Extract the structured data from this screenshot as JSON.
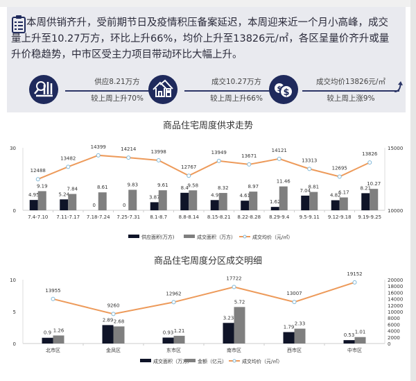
{
  "summary": {
    "icon": "clipboard-icon",
    "text": "本周供销齐升，受前期节日及疫情积压备案延迟，本周迎来近一个月小高峰，成交量上升至10.27万方，环比上升66%，均价上升至13826元/㎡，各区呈量价齐升或量升价稳趋势，中市区受主力项目带动环比大幅上升。"
  },
  "stats": [
    {
      "icon": "chart-magnifier-icon",
      "top": "供应8.21万方",
      "bottom": "较上周上升70%"
    },
    {
      "icon": "house-icon",
      "top": "成交10.27万方",
      "bottom": "较上周上升66%"
    },
    {
      "icon": "dollar-coins-icon",
      "top": "成交均价13826元/㎡",
      "bottom": "较上周上涨9%"
    }
  ],
  "colors": {
    "navy": "#0f1428",
    "gray": "#7f7f7f",
    "orange": "#ed9a5a",
    "panel": "#e9eaef"
  },
  "chart_data": [
    {
      "type": "bar",
      "title": "商品住宅周度供求走势",
      "categories": [
        "7.4-7.10",
        "7.11-7.17",
        "7.18-7.24",
        "7.25-7.31",
        "8.1-8.7",
        "8.8-8.14",
        "8.15-8.21",
        "8.22-8.28",
        "8.29-9.4",
        "9.5-9.11",
        "9.12-9.18",
        "9.19-9.25"
      ],
      "series": [
        {
          "name": "供应面积(万方)",
          "axis": "left",
          "values": [
            4.95,
            5.24,
            0,
            0,
            3.87,
            8.4,
            4.9,
            4.61,
            1.62,
            7.04,
            4.82,
            8.21
          ]
        },
        {
          "name": "成交面积（万方）",
          "axis": "left",
          "values": [
            9.19,
            7.84,
            8.61,
            9.83,
            9.61,
            9.58,
            8.32,
            8.97,
            11.46,
            8.81,
            6.17,
            10.27
          ]
        },
        {
          "name": "成交均价（元/㎡）",
          "axis": "right",
          "type": "line",
          "values": [
            12488,
            13482,
            14399,
            14214,
            13998,
            12767,
            13949,
            13671,
            14121,
            13313,
            12695,
            13826
          ]
        }
      ],
      "ylim": [
        0,
        30
      ],
      "yticks": [
        "0",
        "30"
      ],
      "y2lim": [
        10000,
        15000
      ],
      "y2ticks": [
        "10000",
        "15000"
      ],
      "legend": "bottom"
    },
    {
      "type": "bar",
      "title": "商品住宅周度分区成交明细",
      "categories": [
        "北市区",
        "金凤区",
        "东市区",
        "南市区",
        "西市区",
        "中市区"
      ],
      "series": [
        {
          "name": "成交面积（万方）",
          "axis": "left",
          "values": [
            0.9,
            2.89,
            0.93,
            3.23,
            1.79,
            0.53
          ]
        },
        {
          "name": "金额（亿元）",
          "axis": "left",
          "values": [
            1.26,
            2.68,
            1.21,
            5.72,
            2.33,
            1.01
          ]
        },
        {
          "name": "成交均价（元/㎡）",
          "axis": "right",
          "type": "line",
          "values": [
            13955,
            9260,
            12962,
            17722,
            13007,
            19152
          ]
        }
      ],
      "ylim": [
        0,
        10
      ],
      "yticks": [
        "0",
        "5",
        "10"
      ],
      "y2lim": [
        0,
        20000
      ],
      "y2ticks": [
        "0",
        "2000",
        "4000",
        "6000",
        "8000",
        "10000",
        "12000",
        "14000",
        "16000",
        "18000",
        "20000"
      ],
      "legend": "bottom"
    }
  ]
}
